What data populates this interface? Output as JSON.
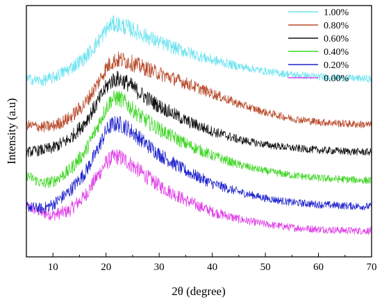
{
  "chart_data": {
    "type": "line",
    "title": "",
    "xlabel": "2θ (degree)",
    "ylabel": "Intensity (a.u)",
    "xlim": [
      5,
      70
    ],
    "xticks": [
      10,
      20,
      30,
      40,
      50,
      60,
      70
    ],
    "y_ticks_shown": false,
    "grid": false,
    "legend_position": "top-right",
    "series": [
      {
        "name": "1.00%",
        "color": "#6fe3f0",
        "x": [
          5,
          8,
          10,
          13,
          16,
          18,
          20,
          21,
          22,
          23,
          24,
          25,
          27,
          30,
          35,
          40,
          45,
          50,
          55,
          60,
          65,
          70
        ],
        "y": [
          4.55,
          4.5,
          4.58,
          4.78,
          5.05,
          5.35,
          5.72,
          5.85,
          5.86,
          5.82,
          5.78,
          5.72,
          5.6,
          5.42,
          5.2,
          5.0,
          4.85,
          4.73,
          4.65,
          4.6,
          4.57,
          4.55
        ]
      },
      {
        "name": "0.80%",
        "color": "#b84a2a",
        "x": [
          5,
          8,
          10,
          13,
          16,
          18,
          20,
          21,
          22,
          23,
          24,
          25,
          27,
          30,
          35,
          40,
          45,
          50,
          55,
          60,
          65,
          70
        ],
        "y": [
          3.45,
          3.4,
          3.42,
          3.6,
          3.95,
          4.35,
          4.8,
          4.95,
          5.0,
          5.0,
          4.97,
          4.92,
          4.82,
          4.68,
          4.45,
          4.2,
          3.95,
          3.75,
          3.6,
          3.52,
          3.48,
          3.45
        ]
      },
      {
        "name": "0.60%",
        "color": "#111111",
        "x": [
          5,
          8,
          10,
          13,
          16,
          18,
          20,
          21,
          22,
          23,
          24,
          25,
          27,
          30,
          35,
          40,
          45,
          50,
          55,
          60,
          65,
          70
        ],
        "y": [
          2.8,
          2.85,
          2.9,
          3.1,
          3.5,
          3.9,
          4.35,
          4.5,
          4.55,
          4.52,
          4.45,
          4.35,
          4.15,
          3.9,
          3.55,
          3.3,
          3.1,
          2.98,
          2.9,
          2.85,
          2.82,
          2.8
        ]
      },
      {
        "name": "0.40%",
        "color": "#3ed624",
        "x": [
          5,
          8,
          10,
          13,
          16,
          18,
          20,
          21,
          22,
          23,
          24,
          25,
          27,
          30,
          35,
          40,
          45,
          50,
          55,
          60,
          65,
          70
        ],
        "y": [
          2.25,
          2.05,
          2.1,
          2.35,
          2.8,
          3.3,
          3.85,
          4.05,
          4.1,
          4.05,
          3.95,
          3.82,
          3.6,
          3.35,
          3.0,
          2.72,
          2.5,
          2.35,
          2.25,
          2.18,
          2.15,
          2.12
        ]
      },
      {
        "name": "0.20%",
        "color": "#1f22cc",
        "x": [
          5,
          8,
          10,
          13,
          16,
          18,
          20,
          21,
          22,
          23,
          24,
          25,
          27,
          30,
          35,
          40,
          45,
          50,
          55,
          60,
          65,
          70
        ],
        "y": [
          1.5,
          1.45,
          1.55,
          1.85,
          2.3,
          2.75,
          3.3,
          3.45,
          3.48,
          3.45,
          3.38,
          3.28,
          3.05,
          2.75,
          2.35,
          2.05,
          1.85,
          1.7,
          1.6,
          1.55,
          1.52,
          1.5
        ]
      },
      {
        "name": "0.00%",
        "color": "#e040e8",
        "x": [
          5,
          8,
          10,
          13,
          16,
          18,
          20,
          21,
          22,
          23,
          24,
          25,
          27,
          30,
          35,
          40,
          45,
          50,
          55,
          60,
          65,
          70
        ],
        "y": [
          1.5,
          1.35,
          1.3,
          1.4,
          1.75,
          2.15,
          2.55,
          2.65,
          2.7,
          2.65,
          2.58,
          2.48,
          2.28,
          2.0,
          1.65,
          1.38,
          1.2,
          1.08,
          1.0,
          0.96,
          0.93,
          0.92
        ]
      }
    ]
  }
}
